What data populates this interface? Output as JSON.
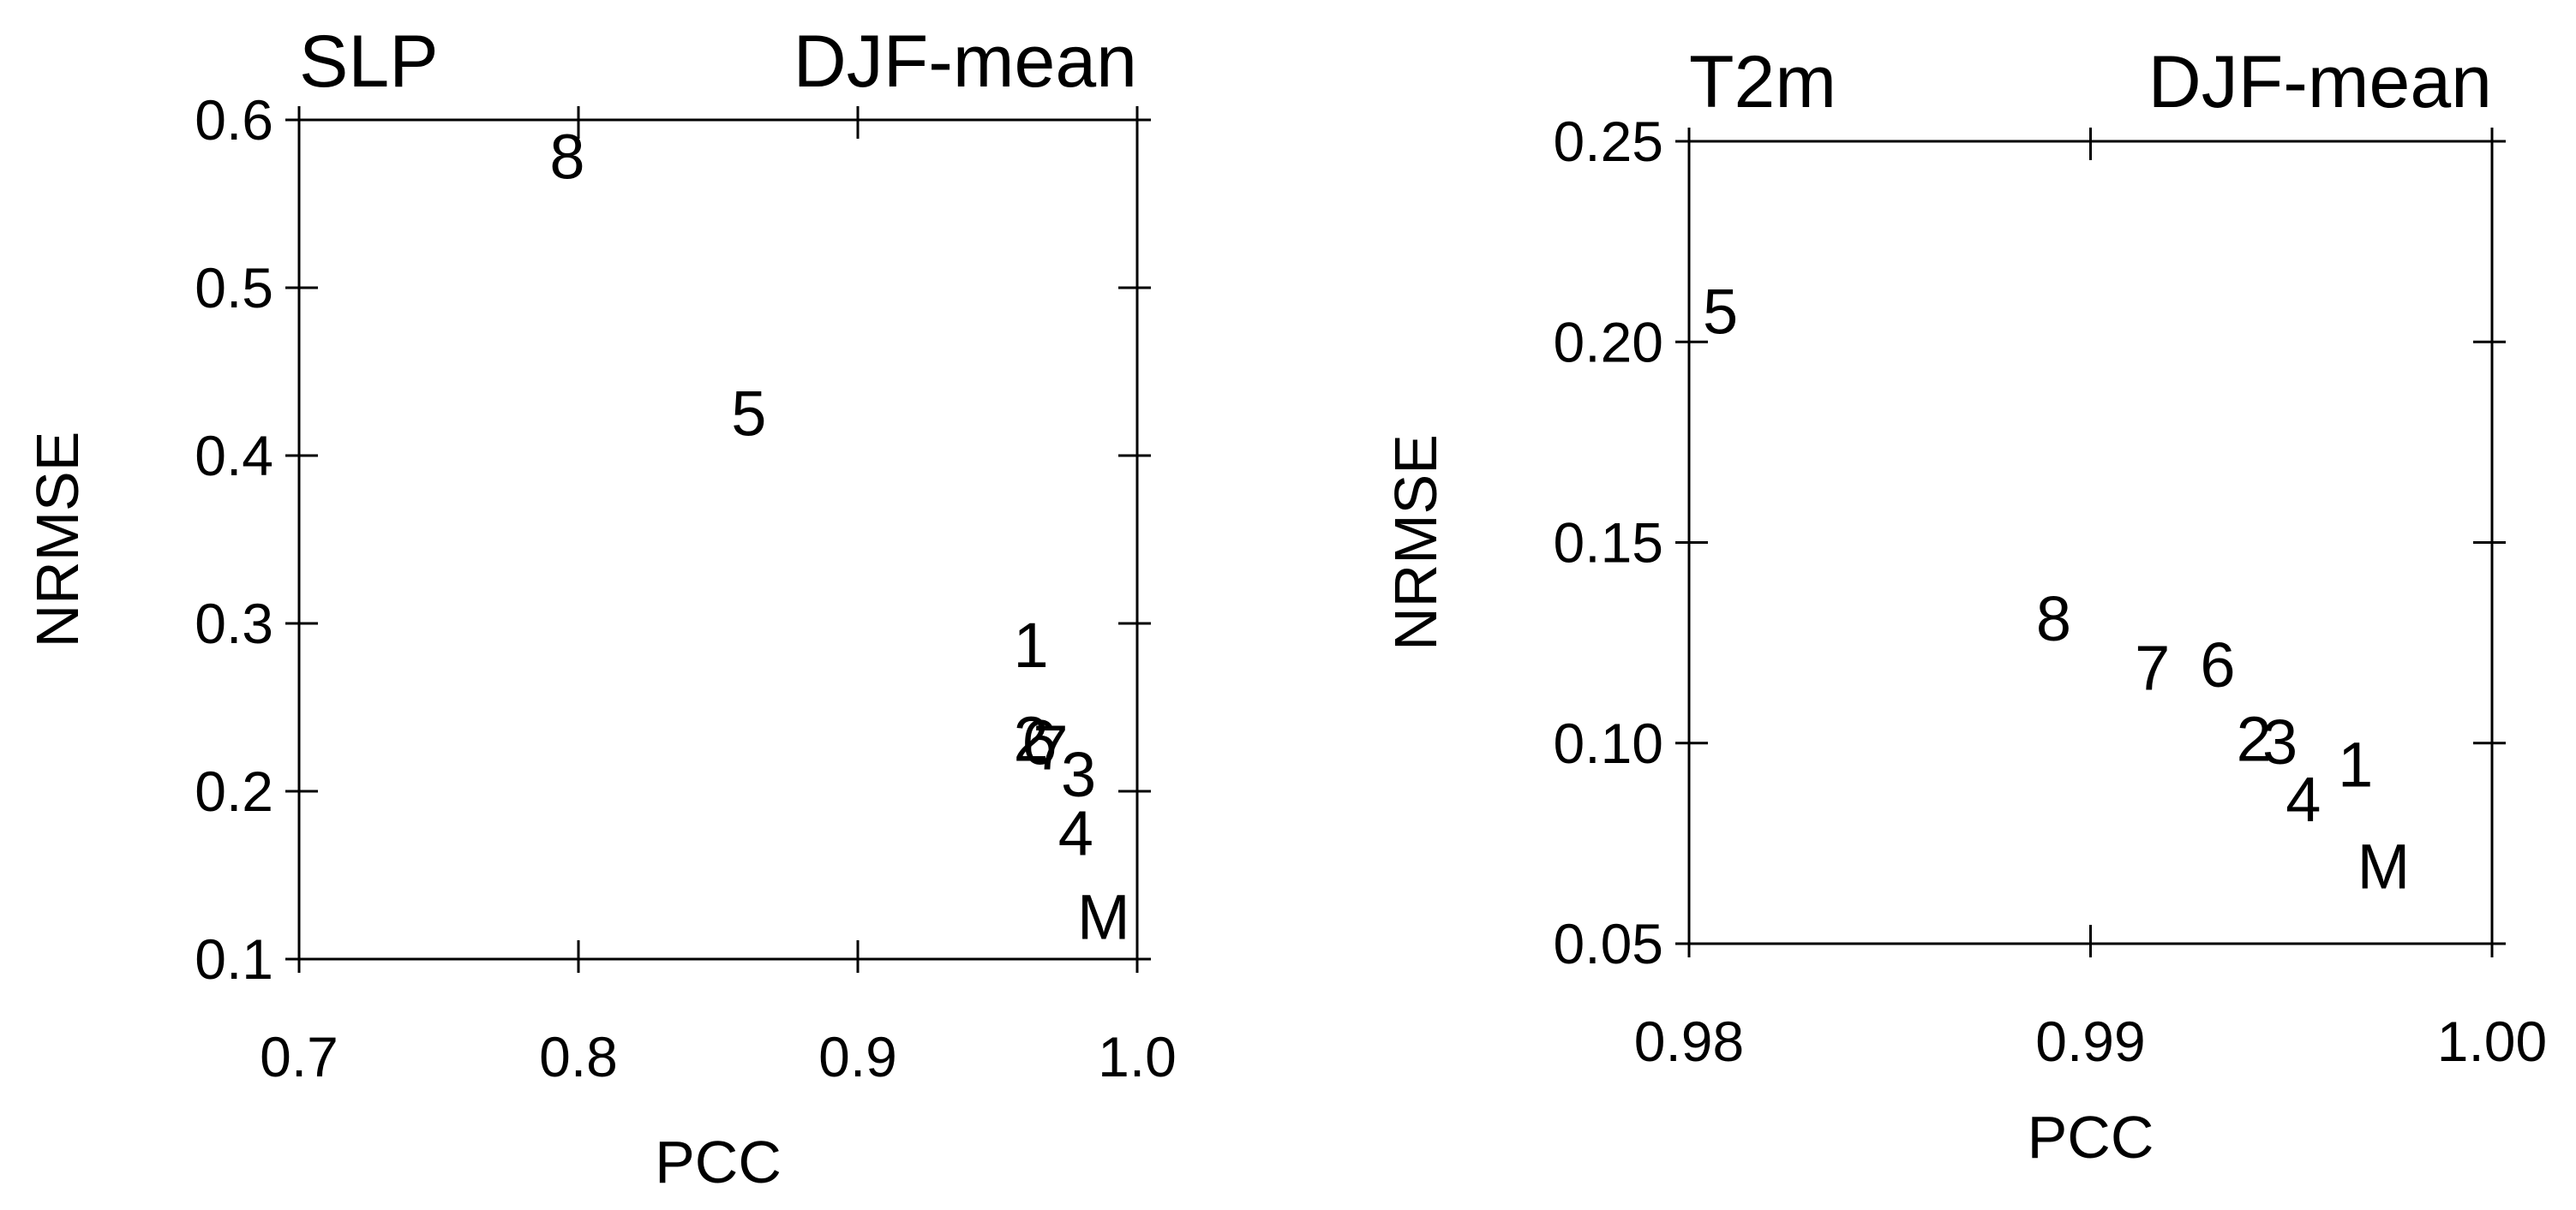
{
  "chart_data": [
    {
      "type": "scatter",
      "title": "SLP",
      "subtitle": "DJF-mean",
      "xlabel": "PCC",
      "ylabel": "NRMSE",
      "xlim": [
        0.7,
        1.0
      ],
      "ylim": [
        0.1,
        0.6
      ],
      "xticks": [
        0.7,
        0.8,
        0.9,
        {
          "value": 1.0,
          "label": "1.0"
        }
      ],
      "yticks": [
        0.1,
        0.2,
        0.3,
        0.4,
        0.5,
        0.6
      ],
      "point_labels": [
        "8",
        "5",
        "1",
        "2",
        "6",
        "7",
        "3",
        "4",
        "M"
      ],
      "x": [
        0.796,
        0.861,
        0.962,
        0.962,
        0.965,
        0.969,
        0.979,
        0.978,
        0.988
      ],
      "values": [
        0.578,
        0.425,
        0.287,
        0.231,
        0.229,
        0.226,
        0.21,
        0.175,
        0.125
      ],
      "color": "#000000"
    },
    {
      "type": "scatter",
      "title": "T2m",
      "subtitle": "DJF-mean",
      "xlabel": "PCC",
      "ylabel": "NRMSE",
      "xlim": [
        0.98,
        1.0
      ],
      "ylim": [
        0.05,
        0.25
      ],
      "xticks": [
        0.98,
        0.99,
        {
          "value": 1.0,
          "label": "1.00"
        }
      ],
      "yticks": [
        {
          "value": 0.05,
          "label": "0.05"
        },
        {
          "value": 0.1,
          "label": "0.10"
        },
        0.15,
        {
          "value": 0.2,
          "label": "0.20"
        },
        0.25
      ],
      "point_labels": [
        "5",
        "8",
        "7",
        "6",
        "2",
        "3",
        "1",
        "4",
        "M"
      ],
      "x": [
        0.98078,
        0.98908,
        0.99154,
        0.99317,
        0.99407,
        0.99472,
        0.9966,
        0.9953,
        0.9973
      ],
      "values": [
        0.2075,
        0.131,
        0.1187,
        0.1195,
        0.101,
        0.1003,
        0.0946,
        0.086,
        0.0692
      ],
      "color": "#000000"
    }
  ]
}
